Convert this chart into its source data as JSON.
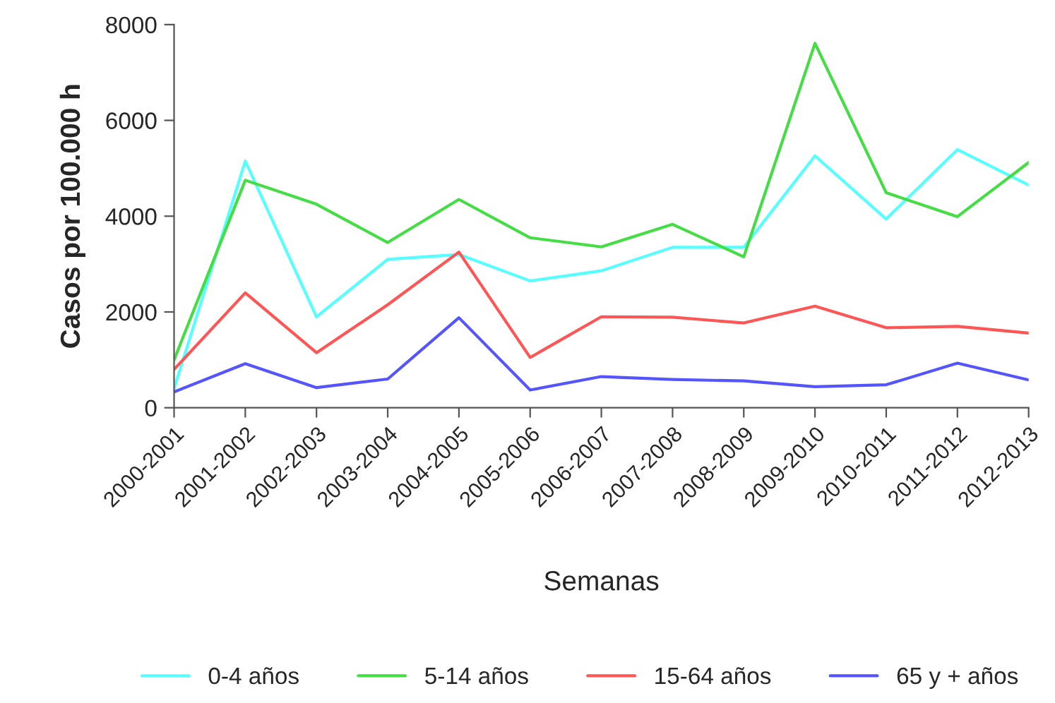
{
  "chart_data": {
    "type": "line",
    "xlabel": "Semanas",
    "ylabel": "Casos por 100.000 h",
    "categories": [
      "2000-2001",
      "2001-2002",
      "2002-2003",
      "2003-2004",
      "2004-2005",
      "2005-2006",
      "2006-2007",
      "2007-2008",
      "2008-2009",
      "2009-2010",
      "2010-2011",
      "2011-2012",
      "2012-2013"
    ],
    "series": [
      {
        "name": "0-4 años",
        "color": "#55ffff",
        "values": [
          400,
          5150,
          1900,
          3100,
          3200,
          2650,
          2860,
          3350,
          3350,
          5260,
          3940,
          5390,
          4650
        ]
      },
      {
        "name": "5-14 años",
        "color": "#44dd44",
        "values": [
          1000,
          4750,
          4250,
          3450,
          4350,
          3550,
          3360,
          3830,
          3150,
          7610,
          4490,
          3990,
          5120
        ]
      },
      {
        "name": "15-64 años",
        "color": "#ff5555",
        "values": [
          800,
          2400,
          1150,
          2150,
          3250,
          1050,
          1900,
          1890,
          1770,
          2120,
          1670,
          1700,
          1560
        ]
      },
      {
        "name": "65 y + años",
        "color": "#5555ff",
        "values": [
          330,
          920,
          420,
          600,
          1880,
          370,
          650,
          590,
          560,
          440,
          480,
          930,
          580
        ]
      }
    ],
    "ylim": [
      0,
      8000
    ],
    "yticks": [
      0,
      2000,
      4000,
      6000,
      8000
    ],
    "grid": false,
    "legend": "bottom",
    "marker": "none",
    "line_style": "solid"
  }
}
